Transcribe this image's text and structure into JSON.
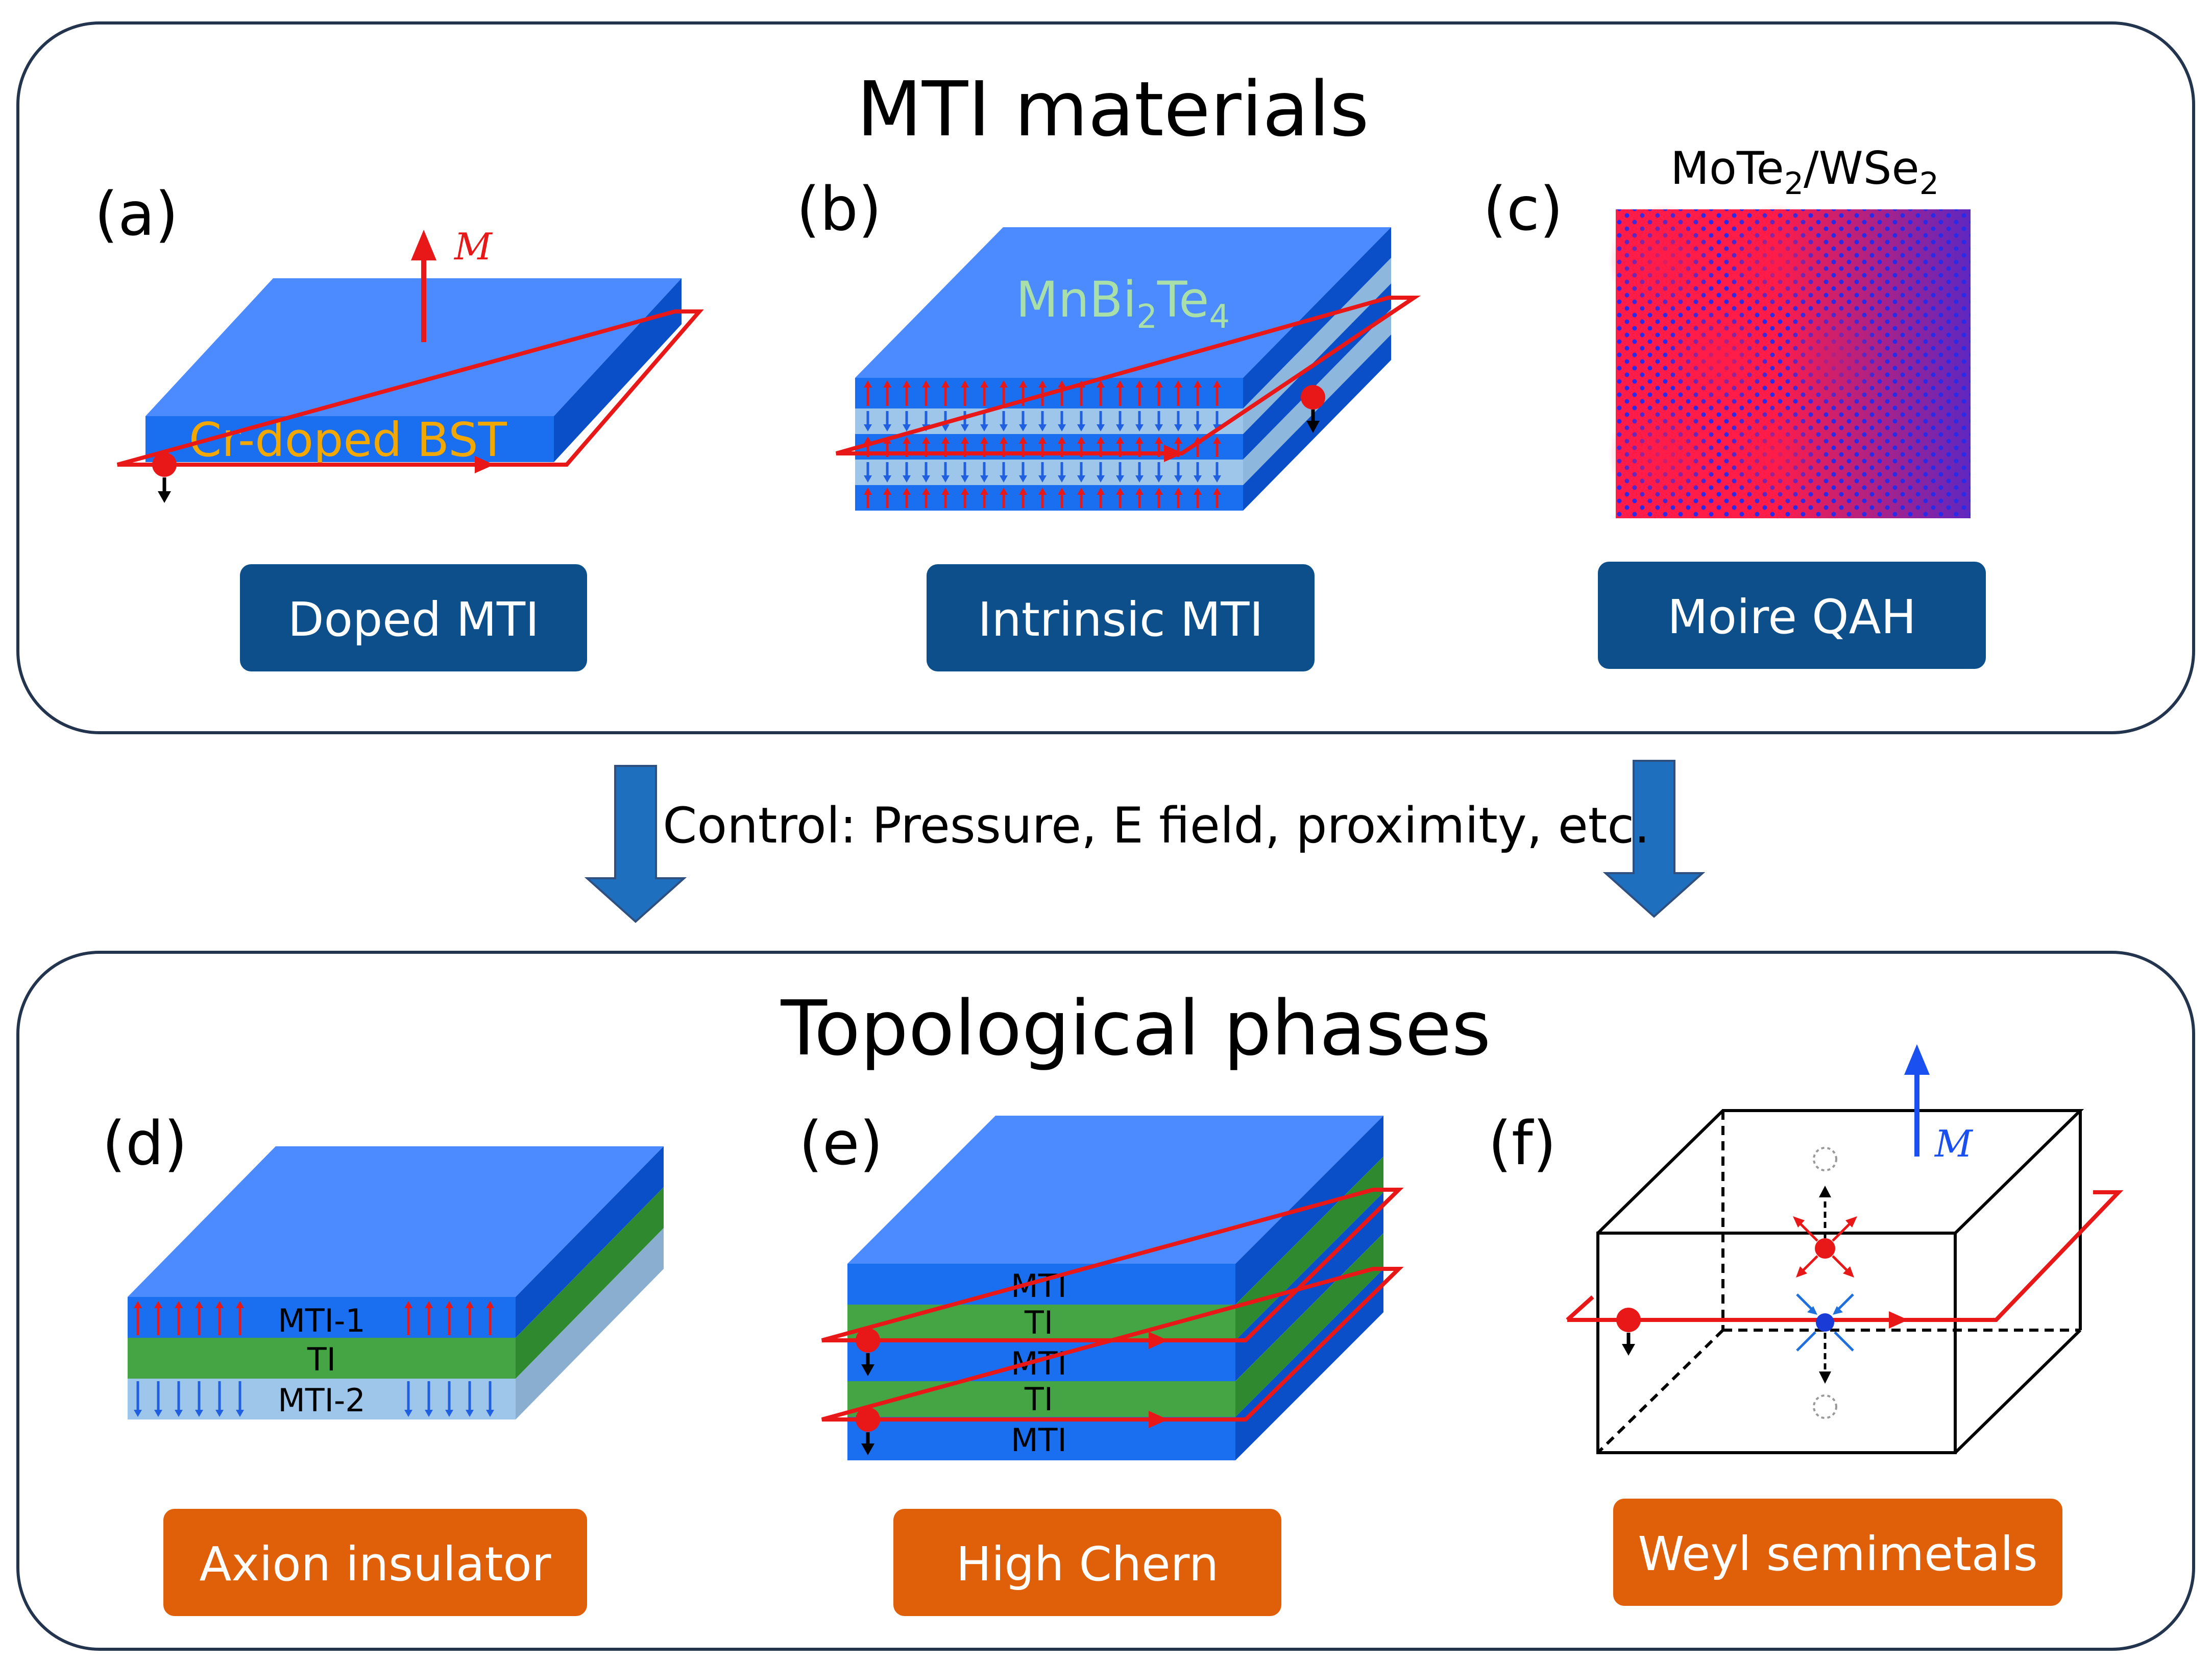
{
  "top_panel": {
    "title": "MTI materials",
    "a": {
      "label": "(a)",
      "material": "Cr-doped BST",
      "moment": "M",
      "button": "Doped MTI"
    },
    "b": {
      "label": "(b)",
      "material_main": "MnBi",
      "material_sub1": "2",
      "material_mid": "Te",
      "material_sub2": "4",
      "button": "Intrinsic MTI"
    },
    "c": {
      "label": "(c)",
      "material_p1": "MoTe",
      "material_s1": "2",
      "material_p2": "/WSe",
      "material_s2": "2",
      "button": "Moire QAH"
    }
  },
  "control_text": "Control: Pressure, E field, proximity, etc.",
  "bottom_panel": {
    "title": "Topological phases",
    "d": {
      "label": "(d)",
      "layer_top": "MTI-1",
      "layer_mid": "TI",
      "layer_bot": "MTI-2",
      "button": "Axion insulator"
    },
    "e": {
      "label": "(e)",
      "layers": [
        "MTI",
        "TI",
        "MTI",
        "TI",
        "MTI"
      ],
      "button": "High Chern"
    },
    "f": {
      "label": "(f)",
      "moment": "M",
      "button": "Weyl semimetals"
    }
  },
  "colors": {
    "blue_layer": "#1a6ff0",
    "blue_top": "#4b8bff",
    "blue_side": "#0a4fc8",
    "light_blue": "#9ec6ea",
    "green": "#45a545",
    "button_blue": "#0d4f8b",
    "button_orange": "#e0600a",
    "arrow_blue": "#1f6fbf",
    "red": "#e81818",
    "orange_text": "#f2a800",
    "mint_text": "#a9dfa9"
  }
}
